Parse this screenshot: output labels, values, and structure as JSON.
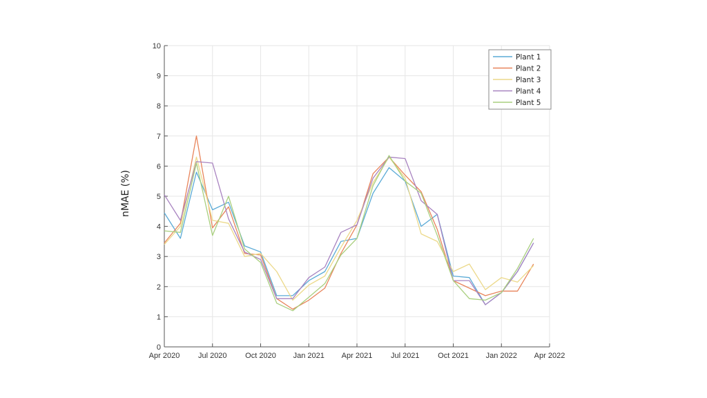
{
  "chart_data": {
    "type": "line",
    "title": "",
    "xlabel": "",
    "ylabel": "nMAE (%)",
    "ylim": [
      0,
      10
    ],
    "yticks": [
      0,
      1,
      2,
      3,
      4,
      5,
      6,
      7,
      8,
      9,
      10
    ],
    "xtick_labels": [
      "Apr 2020",
      "Jul 2020",
      "Oct 2020",
      "Jan 2021",
      "Apr 2021",
      "Jul 2021",
      "Oct 2021",
      "Jan 2022",
      "Apr 2022"
    ],
    "grid": true,
    "legend_position": "upper right",
    "x": [
      "Apr 2020",
      "May 2020",
      "Jun 2020",
      "Jul 2020",
      "Aug 2020",
      "Sep 2020",
      "Oct 2020",
      "Nov 2020",
      "Dec 2020",
      "Jan 2021",
      "Feb 2021",
      "Mar 2021",
      "Apr 2021",
      "May 2021",
      "Jun 2021",
      "Jul 2021",
      "Aug 2021",
      "Sep 2021",
      "Oct 2021",
      "Nov 2021",
      "Dec 2021",
      "Jan 2022",
      "Feb 2022",
      "Mar 2022"
    ],
    "series": [
      {
        "name": "Plant 1",
        "color": "#5aaad6",
        "values": [
          4.45,
          3.6,
          5.8,
          4.55,
          4.8,
          3.35,
          3.15,
          1.7,
          1.7,
          2.2,
          2.5,
          3.5,
          3.6,
          5.1,
          5.95,
          5.5,
          4.0,
          4.4,
          2.35,
          2.3,
          1.4,
          1.8,
          2.5,
          3.45
        ]
      },
      {
        "name": "Plant 2",
        "color": "#e8845a",
        "values": [
          3.45,
          4.1,
          7.0,
          3.95,
          4.65,
          3.1,
          3.05,
          1.6,
          1.25,
          1.55,
          1.95,
          3.1,
          4.05,
          5.75,
          6.3,
          5.7,
          5.15,
          3.9,
          2.2,
          1.95,
          1.7,
          1.85,
          1.85,
          2.75
        ]
      },
      {
        "name": "Plant 3",
        "color": "#ecd98a",
        "values": [
          3.4,
          4.0,
          6.3,
          4.2,
          4.1,
          3.0,
          3.1,
          2.5,
          1.55,
          2.05,
          2.35,
          3.3,
          4.2,
          5.45,
          6.3,
          5.6,
          3.75,
          3.5,
          2.5,
          2.75,
          1.9,
          2.3,
          2.15,
          2.7
        ]
      },
      {
        "name": "Plant 4",
        "color": "#a883c0",
        "values": [
          5.05,
          4.2,
          6.15,
          6.1,
          4.25,
          3.15,
          2.9,
          1.6,
          1.6,
          2.3,
          2.65,
          3.8,
          4.05,
          5.6,
          6.3,
          6.25,
          4.85,
          4.4,
          2.2,
          2.2,
          1.4,
          1.8,
          2.5,
          3.45
        ]
      },
      {
        "name": "Plant 5",
        "color": "#a9cf7e",
        "values": [
          3.85,
          3.8,
          6.1,
          3.7,
          5.0,
          3.25,
          2.8,
          1.45,
          1.2,
          1.65,
          2.1,
          3.05,
          3.6,
          5.35,
          6.35,
          5.5,
          5.1,
          3.7,
          2.2,
          1.6,
          1.55,
          1.8,
          2.6,
          3.6
        ]
      }
    ]
  },
  "axes": {
    "ylabel": "nMAE (%)"
  },
  "legend": {
    "items": [
      "Plant 1",
      "Plant 2",
      "Plant 3",
      "Plant 4",
      "Plant 5"
    ]
  }
}
